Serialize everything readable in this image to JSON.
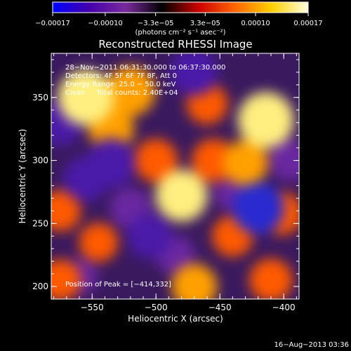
{
  "chart_data": {
    "type": "heatmap",
    "title": "Reconstructed RHESSI Image",
    "xlabel": "Heliocentric X (arcsec)",
    "ylabel": "Heliocentric Y (arcsec)",
    "xlim": [
      -582,
      -388
    ],
    "ylim": [
      190,
      385
    ],
    "xticks": [
      -550,
      -500,
      -450,
      -400
    ],
    "xtick_labels": [
      "−550",
      "−500",
      "−450",
      "−400"
    ],
    "yticks": [
      200,
      250,
      300,
      350
    ],
    "ytick_labels": [
      "200",
      "250",
      "300",
      "350"
    ],
    "grid": false,
    "colorbar": {
      "ticks": [
        -0.00017,
        -0.0001,
        -3.3e-05,
        3.3e-05,
        0.0001,
        0.00017
      ],
      "tick_labels": [
        "−0.00017",
        "−0.00010",
        "−3.3e−05",
        "3.3e−05",
        "0.00010",
        "0.00017"
      ],
      "range": [
        -0.00017,
        0.00017
      ],
      "colors": [
        "#0000ff",
        "#4400aa",
        "#7a2a9e",
        "#000000",
        "#cc0000",
        "#ff6600",
        "#ffd000",
        "#ffffe0"
      ]
    },
    "units_label": "(photons cm⁻² s⁻¹ asec⁻²)",
    "annotations": {
      "time": "28−Nov−2011 06:31:30.000 to 06:37:30.000",
      "detectors": "Detectors: 4F 5F 6F 7F 8F, Att 0",
      "energy": "Energy Range: 25.0 − 50.0 keV",
      "clean": "Clean     Total counts: 2.40E+04",
      "peak": "Position of Peak = [−414,332]"
    },
    "peak": {
      "x": -414,
      "y": 332
    },
    "hotspots": [
      {
        "x": -555,
        "y": 350,
        "value": 0.00017
      },
      {
        "x": -535,
        "y": 325,
        "value": 0.00012
      },
      {
        "x": -520,
        "y": 355,
        "value": 0.00014
      },
      {
        "x": -500,
        "y": 300,
        "value": 0.00011
      },
      {
        "x": -480,
        "y": 272,
        "value": 0.00015
      },
      {
        "x": -460,
        "y": 345,
        "value": 0.0001
      },
      {
        "x": -455,
        "y": 300,
        "value": 0.00011
      },
      {
        "x": -430,
        "y": 298,
        "value": 0.00012
      },
      {
        "x": -414,
        "y": 332,
        "value": 0.00017
      },
      {
        "x": -575,
        "y": 260,
        "value": 0.0001
      },
      {
        "x": -545,
        "y": 235,
        "value": 9e-05
      },
      {
        "x": -440,
        "y": 240,
        "value": 0.0001
      },
      {
        "x": -402,
        "y": 258,
        "value": 0.00011
      },
      {
        "x": -470,
        "y": 200,
        "value": 0.00012
      },
      {
        "x": -410,
        "y": 205,
        "value": 0.00011
      },
      {
        "x": -575,
        "y": 205,
        "value": 0.0001
      },
      {
        "x": -555,
        "y": 285,
        "value": -0.00012
      },
      {
        "x": -535,
        "y": 298,
        "value": -0.00014
      },
      {
        "x": -505,
        "y": 240,
        "value": -0.00012
      },
      {
        "x": -520,
        "y": 262,
        "value": -0.0001
      },
      {
        "x": -420,
        "y": 262,
        "value": -0.00015
      },
      {
        "x": -395,
        "y": 300,
        "value": -0.0001
      },
      {
        "x": -470,
        "y": 370,
        "value": -0.00013
      },
      {
        "x": -575,
        "y": 330,
        "value": -0.00012
      },
      {
        "x": -485,
        "y": 225,
        "value": -9e-05
      },
      {
        "x": -440,
        "y": 275,
        "value": -8e-05
      },
      {
        "x": -560,
        "y": 208,
        "value": -8e-05
      }
    ]
  },
  "footer": {
    "date": "16−Aug−2013 03:36"
  }
}
